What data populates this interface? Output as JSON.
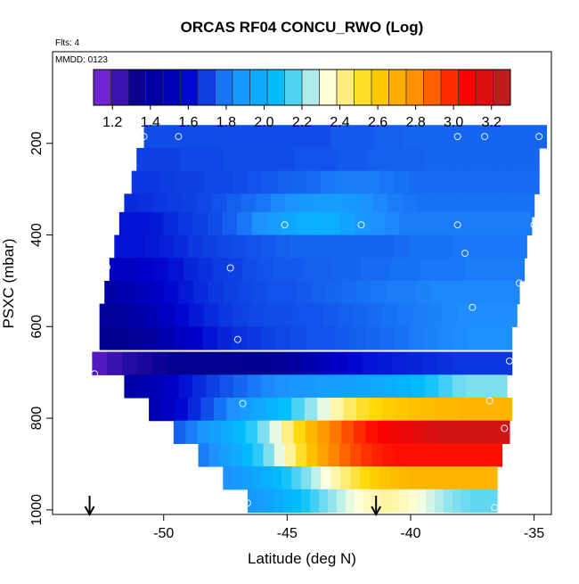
{
  "chart_data": {
    "type": "heatmap",
    "title": "ORCAS RF04 CONCU_RWO (Log)",
    "subtitle_flights": "Flts: 4",
    "subtitle_date": "MMDD: 0123",
    "xlabel": "Latitude (deg N)",
    "ylabel": "PSXC (mbar)",
    "xlim": [
      -54.5,
      -34.3
    ],
    "ylim": [
      1010,
      0
    ],
    "xticks": [
      "-50",
      "-45",
      "-40",
      "-35"
    ],
    "yticks": [
      "200",
      "400",
      "600",
      "800",
      "1000"
    ],
    "colorbar": {
      "range": [
        1.1,
        3.3
      ],
      "ticks": [
        "1.2",
        "1.4",
        "1.6",
        "1.8",
        "2.0",
        "2.2",
        "2.4",
        "2.6",
        "2.8",
        "3.0",
        "3.2"
      ],
      "stops": [
        "#8a2be2",
        "#00008b",
        "#0000cd",
        "#1e90ff",
        "#00bfff",
        "#ffffe0",
        "#ffd700",
        "#ff8c00",
        "#ff0000",
        "#b22222"
      ]
    },
    "rows": [
      {
        "p": 185,
        "x0": -50.8,
        "x1": -34.5,
        "v": [
          1.72,
          1.72,
          1.72,
          1.72,
          1.72,
          1.72,
          1.72,
          1.72,
          1.72,
          1.72,
          1.72,
          1.72,
          1.72,
          1.74,
          1.74,
          1.74,
          1.75,
          1.75,
          1.76,
          1.76,
          1.76,
          1.76,
          1.76,
          1.76,
          1.76,
          1.76,
          1.76,
          1.76
        ]
      },
      {
        "p": 235,
        "x0": -51.1,
        "x1": -34.8,
        "v": [
          1.7,
          1.7,
          1.7,
          1.71,
          1.71,
          1.71,
          1.72,
          1.72,
          1.72,
          1.72,
          1.72,
          1.73,
          1.73,
          1.73,
          1.74,
          1.74,
          1.75,
          1.75,
          1.75,
          1.75,
          1.76,
          1.76,
          1.76,
          1.76,
          1.76,
          1.76,
          1.76,
          1.76
        ]
      },
      {
        "p": 285,
        "x0": -51.3,
        "x1": -34.8,
        "v": [
          1.68,
          1.68,
          1.69,
          1.7,
          1.7,
          1.71,
          1.71,
          1.72,
          1.73,
          1.74,
          1.75,
          1.76,
          1.77,
          1.79,
          1.8,
          1.8,
          1.8,
          1.79,
          1.78,
          1.77,
          1.77,
          1.77,
          1.77,
          1.77,
          1.77,
          1.77,
          1.77,
          1.77
        ]
      },
      {
        "p": 335,
        "x0": -51.6,
        "x1": -35.0,
        "v": [
          1.66,
          1.67,
          1.68,
          1.69,
          1.7,
          1.71,
          1.73,
          1.75,
          1.77,
          1.79,
          1.82,
          1.85,
          1.88,
          1.9,
          1.9,
          1.88,
          1.85,
          1.82,
          1.8,
          1.79,
          1.78,
          1.78,
          1.78,
          1.78,
          1.78,
          1.78,
          1.78,
          1.78
        ]
      },
      {
        "p": 375,
        "x0": -51.8,
        "x1": -35.1,
        "v": [
          1.62,
          1.62,
          1.63,
          1.66,
          1.68,
          1.7,
          1.72,
          1.75,
          1.79,
          1.84,
          1.9,
          1.95,
          1.98,
          2.0,
          1.98,
          1.93,
          1.88,
          1.84,
          1.82,
          1.8,
          1.8,
          1.8,
          1.8,
          1.8,
          1.8,
          1.8,
          1.8,
          1.8
        ]
      },
      {
        "p": 425,
        "x0": -52.0,
        "x1": -35.3,
        "v": [
          1.62,
          1.62,
          1.63,
          1.64,
          1.66,
          1.68,
          1.7,
          1.71,
          1.72,
          1.73,
          1.74,
          1.75,
          1.76,
          1.76,
          1.76,
          1.76,
          1.76,
          1.76,
          1.76,
          1.77,
          1.78,
          1.78,
          1.78,
          1.79,
          1.79,
          1.79,
          1.79,
          1.79
        ]
      },
      {
        "p": 475,
        "x0": -52.2,
        "x1": -35.4,
        "v": [
          1.55,
          1.56,
          1.58,
          1.6,
          1.62,
          1.65,
          1.67,
          1.69,
          1.7,
          1.72,
          1.73,
          1.74,
          1.74,
          1.75,
          1.75,
          1.76,
          1.76,
          1.77,
          1.77,
          1.78,
          1.78,
          1.79,
          1.79,
          1.79,
          1.8,
          1.8,
          1.8,
          1.8
        ]
      },
      {
        "p": 525,
        "x0": -52.4,
        "x1": -35.6,
        "v": [
          1.45,
          1.48,
          1.52,
          1.56,
          1.6,
          1.63,
          1.66,
          1.68,
          1.7,
          1.71,
          1.72,
          1.73,
          1.73,
          1.74,
          1.75,
          1.76,
          1.77,
          1.78,
          1.79,
          1.8,
          1.8,
          1.81,
          1.82,
          1.82,
          1.82,
          1.82,
          1.82,
          1.82
        ]
      },
      {
        "p": 575,
        "x0": -52.6,
        "x1": -35.7,
        "v": [
          1.4,
          1.42,
          1.46,
          1.5,
          1.55,
          1.6,
          1.63,
          1.66,
          1.68,
          1.7,
          1.71,
          1.72,
          1.72,
          1.73,
          1.73,
          1.74,
          1.75,
          1.76,
          1.77,
          1.78,
          1.79,
          1.8,
          1.81,
          1.82,
          1.83,
          1.83,
          1.83,
          1.83
        ]
      },
      {
        "p": 625,
        "x0": -52.6,
        "x1": -35.9,
        "v": [
          1.35,
          1.36,
          1.38,
          1.42,
          1.47,
          1.53,
          1.58,
          1.62,
          1.65,
          1.67,
          1.68,
          1.7,
          1.71,
          1.72,
          1.73,
          1.73,
          1.74,
          1.75,
          1.76,
          1.77,
          1.78,
          1.8,
          1.81,
          1.82,
          1.83,
          1.84,
          1.84,
          1.84
        ]
      },
      {
        "p": 680,
        "x0": -52.9,
        "x1": -35.9,
        "v": [
          1.2,
          1.24,
          1.28,
          1.3,
          1.32,
          1.34,
          1.34,
          1.34,
          1.34,
          1.34,
          1.35,
          1.36,
          1.38,
          1.42,
          1.47,
          1.52,
          1.57,
          1.6,
          1.62,
          1.63,
          1.64,
          1.65,
          1.66,
          1.67,
          1.68,
          1.68,
          1.68,
          1.68
        ]
      },
      {
        "p": 730,
        "x0": -51.6,
        "x1": -36.1,
        "v": [
          1.45,
          1.47,
          1.52,
          1.57,
          1.62,
          1.66,
          1.7,
          1.73,
          1.76,
          1.79,
          1.82,
          1.84,
          1.86,
          1.88,
          1.9,
          1.91,
          1.92,
          1.94,
          1.96,
          1.99,
          2.02,
          2.06,
          2.1,
          2.14,
          2.18,
          2.2,
          2.2,
          2.2
        ]
      },
      {
        "p": 780,
        "x0": -50.6,
        "x1": -35.9,
        "v": [
          1.5,
          1.55,
          1.6,
          1.66,
          1.72,
          1.78,
          1.84,
          1.9,
          1.96,
          2.02,
          2.08,
          2.15,
          2.22,
          2.3,
          2.38,
          2.46,
          2.52,
          2.56,
          2.6,
          2.62,
          2.64,
          2.65,
          2.66,
          2.67,
          2.68,
          2.68,
          2.68,
          2.68
        ]
      },
      {
        "p": 830,
        "x0": -49.6,
        "x1": -36.0,
        "v": [
          1.75,
          1.8,
          1.86,
          1.92,
          1.98,
          2.05,
          2.12,
          2.2,
          2.3,
          2.42,
          2.55,
          2.67,
          2.77,
          2.85,
          2.92,
          2.98,
          3.03,
          3.07,
          3.1,
          3.12,
          3.15,
          3.18,
          3.2,
          3.2,
          3.2,
          3.2,
          3.2,
          3.2
        ]
      },
      {
        "p": 880,
        "x0": -48.6,
        "x1": -36.3,
        "v": [
          1.8,
          1.85,
          1.91,
          1.97,
          2.04,
          2.12,
          2.2,
          2.3,
          2.4,
          2.52,
          2.64,
          2.74,
          2.82,
          2.88,
          2.93,
          2.97,
          3.0,
          3.02,
          3.03,
          3.03,
          3.03,
          3.03,
          3.03,
          3.03,
          3.03,
          3.03,
          3.03,
          3.03
        ]
      },
      {
        "p": 930,
        "x0": -47.6,
        "x1": -36.5,
        "v": [
          1.85,
          1.88,
          1.92,
          1.96,
          2.0,
          2.05,
          2.1,
          2.15,
          2.2,
          2.26,
          2.32,
          2.38,
          2.44,
          2.5,
          2.55,
          2.6,
          2.63,
          2.65,
          2.67,
          2.68,
          2.68,
          2.68,
          2.68,
          2.68,
          2.68,
          2.68,
          2.68,
          2.68
        ]
      },
      {
        "p": 980,
        "x0": -46.6,
        "x1": -36.5,
        "v": [
          1.88,
          1.9,
          1.93,
          1.97,
          2.02,
          2.06,
          2.1,
          2.14,
          2.18,
          2.22,
          2.26,
          2.3,
          2.33,
          2.36,
          2.38,
          2.39,
          2.38,
          2.36,
          2.34,
          2.31,
          2.28,
          2.25,
          2.22,
          2.2,
          2.18,
          2.17,
          2.17,
          2.17
        ]
      }
    ],
    "points": [
      {
        "x": -50.8,
        "p": 185
      },
      {
        "x": -49.4,
        "p": 185
      },
      {
        "x": -38.1,
        "p": 185
      },
      {
        "x": -37.0,
        "p": 185
      },
      {
        "x": -34.8,
        "p": 185
      },
      {
        "x": -45.1,
        "p": 378
      },
      {
        "x": -42.0,
        "p": 378
      },
      {
        "x": -38.1,
        "p": 378
      },
      {
        "x": -35.0,
        "p": 378
      },
      {
        "x": -37.8,
        "p": 440
      },
      {
        "x": -52.3,
        "p": 470
      },
      {
        "x": -47.3,
        "p": 472
      },
      {
        "x": -35.6,
        "p": 505
      },
      {
        "x": -37.5,
        "p": 558
      },
      {
        "x": -47.0,
        "p": 628
      },
      {
        "x": -36.0,
        "p": 675
      },
      {
        "x": -52.8,
        "p": 703
      },
      {
        "x": -46.8,
        "p": 768
      },
      {
        "x": -36.8,
        "p": 762
      },
      {
        "x": -36.2,
        "p": 822
      },
      {
        "x": -46.6,
        "p": 985
      },
      {
        "x": -36.6,
        "p": 995
      }
    ],
    "arrows_x": [
      -53.0,
      -41.4
    ]
  }
}
